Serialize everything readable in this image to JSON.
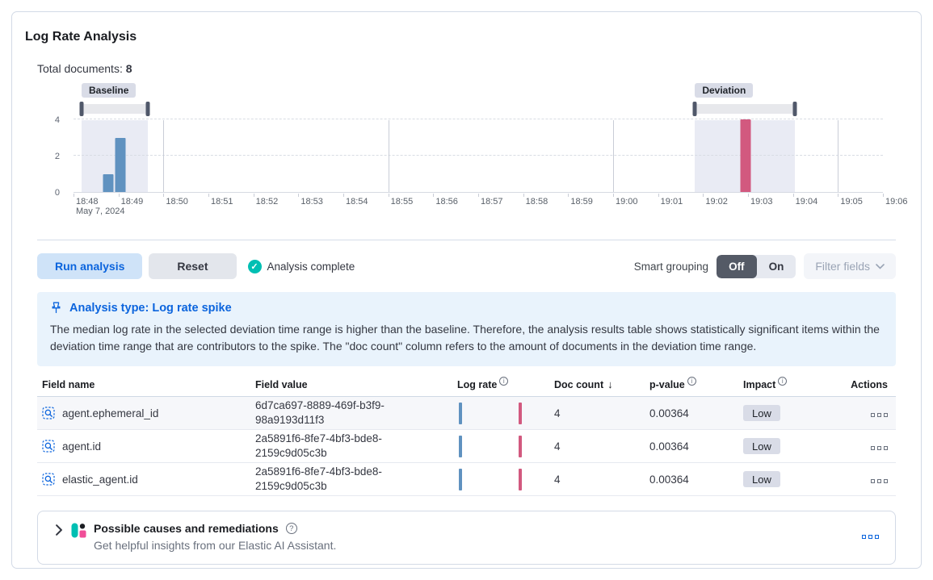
{
  "panel": {
    "title": "Log Rate Analysis"
  },
  "summary": {
    "total_documents_label": "Total documents:",
    "total_documents_value": "8"
  },
  "chart_data": {
    "type": "bar",
    "title": "document count histogram",
    "x_axis": {
      "total_minutes": 18,
      "tick_labels": [
        "18:48",
        "18:49",
        "18:50",
        "18:51",
        "18:52",
        "18:53",
        "18:54",
        "18:55",
        "18:56",
        "18:57",
        "18:58",
        "18:59",
        "19:00",
        "19:01",
        "19:02",
        "19:03",
        "19:04",
        "19:05",
        "19:06"
      ],
      "date_label": "May 7, 2024",
      "gridline_minutes": [
        2,
        7,
        12,
        17
      ]
    },
    "y_axis": {
      "ticks": [
        0,
        2,
        4
      ],
      "max": 4
    },
    "baseline": {
      "label": "Baseline",
      "window_minutes": [
        0.18,
        1.66
      ],
      "bars": [
        {
          "minute": 0.78,
          "value": 1
        },
        {
          "minute": 1.05,
          "value": 3
        }
      ]
    },
    "deviation": {
      "label": "Deviation",
      "window_minutes": [
        13.82,
        16.05
      ],
      "bars": [
        {
          "minute": 14.95,
          "value": 4
        }
      ]
    },
    "colors": {
      "baseline_bar": "#6092C0",
      "deviation_bar": "#D2597F",
      "window_bg": "#E9EBF4"
    }
  },
  "toolbar": {
    "run_label": "Run analysis",
    "reset_label": "Reset",
    "status_label": "Analysis complete",
    "smart_grouping_label": "Smart grouping",
    "off_label": "Off",
    "on_label": "On",
    "filter_fields_label": "Filter fields"
  },
  "callout": {
    "title": "Analysis type: Log rate spike",
    "body": "The median log rate in the selected deviation time range is higher than the baseline. Therefore, the analysis results table shows statistically significant items within the deviation time range that are contributors to the spike. The \"doc count\" column refers to the amount of documents in the deviation time range."
  },
  "table": {
    "headers": [
      {
        "label": "Field name",
        "info": false,
        "sort": "",
        "align": "left"
      },
      {
        "label": "Field value",
        "info": false,
        "sort": "",
        "align": "left"
      },
      {
        "label": "Log rate",
        "info": true,
        "sort": "",
        "align": "left"
      },
      {
        "label": "Doc count",
        "info": false,
        "sort": "desc",
        "align": "left"
      },
      {
        "label": "p-value",
        "info": true,
        "sort": "",
        "align": "left"
      },
      {
        "label": "Impact",
        "info": true,
        "sort": "",
        "align": "left"
      },
      {
        "label": "Actions",
        "info": false,
        "sort": "",
        "align": "right"
      }
    ],
    "rows": [
      {
        "field_name": "agent.ephemeral_id",
        "field_value": "6d7ca697-8889-469f-b3f9-98a9193d11f3",
        "doc_count": "4",
        "p_value": "0.00364",
        "impact": "Low"
      },
      {
        "field_name": "agent.id",
        "field_value": "2a5891f6-8fe7-4bf3-bde8-2159c9d05c3b",
        "doc_count": "4",
        "p_value": "0.00364",
        "impact": "Low"
      },
      {
        "field_name": "elastic_agent.id",
        "field_value": "2a5891f6-8fe7-4bf3-bde8-2159c9d05c3b",
        "doc_count": "4",
        "p_value": "0.00364",
        "impact": "Low"
      }
    ]
  },
  "footer": {
    "title": "Possible causes and remediations",
    "subtitle": "Get helpful insights from our Elastic AI Assistant."
  },
  "icons": {
    "ai_teal": "#00BFB3",
    "ai_dark": "#1C1E23",
    "ai_pink": "#F04E98",
    "primary_blue": "#0B64DD",
    "success_green": "#00BFB3"
  }
}
